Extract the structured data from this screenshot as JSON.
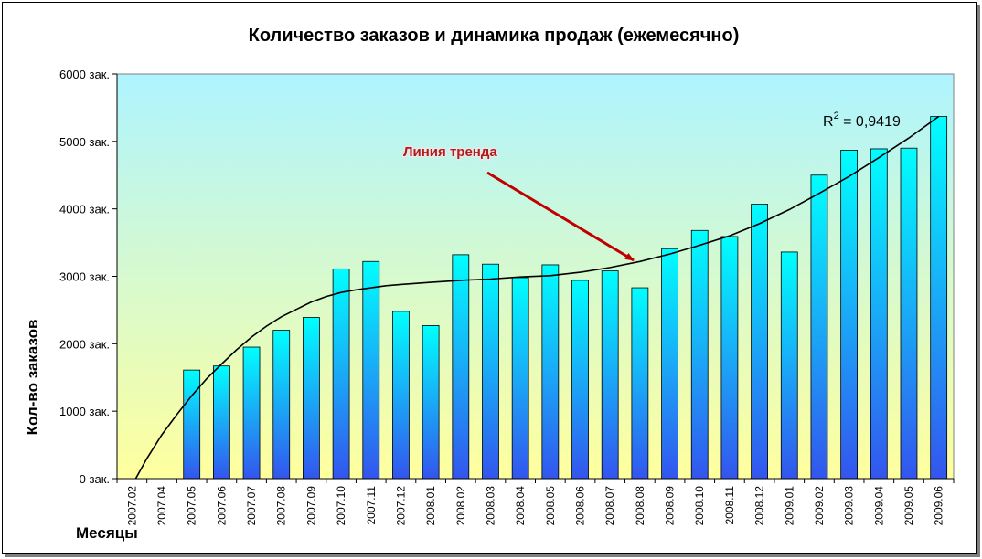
{
  "chart_data": {
    "type": "bar",
    "title": "Количество заказов и динамика продаж (ежемесячно)",
    "xlabel": "Месяцы",
    "ylabel": "Кол-во заказов",
    "ylim": [
      0,
      6000
    ],
    "yticks": [
      {
        "value": 0,
        "label": "0 зак."
      },
      {
        "value": 1000,
        "label": "1000 зак."
      },
      {
        "value": 2000,
        "label": "2000 зак."
      },
      {
        "value": 3000,
        "label": "3000 зак."
      },
      {
        "value": 4000,
        "label": "4000 зак."
      },
      {
        "value": 5000,
        "label": "5000 зак."
      },
      {
        "value": 6000,
        "label": "6000 зак."
      }
    ],
    "categories": [
      "2007.02",
      "2007.04",
      "2007.05",
      "2007.06",
      "2007.07",
      "2007.08",
      "2007.09",
      "2007.10",
      "2007.11",
      "2007.12",
      "2008.01",
      "2008.02",
      "2008.03",
      "2008.04",
      "2008.05",
      "2008.06",
      "2008.07",
      "2008.08",
      "2008.09",
      "2008.10",
      "2008.11",
      "2008.12",
      "2009.01",
      "2009.02",
      "2009.03",
      "2009.04",
      "2009.05",
      "2009.06"
    ],
    "values": [
      0,
      0,
      1610,
      1670,
      1950,
      2200,
      2390,
      3110,
      3220,
      2480,
      2270,
      3320,
      3180,
      2980,
      3170,
      2940,
      3080,
      2830,
      3410,
      3680,
      3590,
      4070,
      3360,
      4500,
      4870,
      4890,
      4900,
      5370
    ],
    "trendline": {
      "type": "polynomial",
      "points": [
        [
          0,
          -100
        ],
        [
          0.5,
          300
        ],
        [
          1,
          650
        ],
        [
          1.5,
          950
        ],
        [
          2,
          1230
        ],
        [
          2.5,
          1480
        ],
        [
          3,
          1700
        ],
        [
          3.5,
          1910
        ],
        [
          4,
          2100
        ],
        [
          4.5,
          2260
        ],
        [
          5,
          2400
        ],
        [
          5.5,
          2510
        ],
        [
          6,
          2620
        ],
        [
          6.5,
          2700
        ],
        [
          7,
          2760
        ],
        [
          7.5,
          2800
        ],
        [
          8,
          2830
        ],
        [
          8.5,
          2860
        ],
        [
          9,
          2880
        ],
        [
          10,
          2910
        ],
        [
          11,
          2940
        ],
        [
          12,
          2960
        ],
        [
          13,
          2990
        ],
        [
          14,
          3010
        ],
        [
          15,
          3060
        ],
        [
          16,
          3130
        ],
        [
          17,
          3220
        ],
        [
          18,
          3330
        ],
        [
          19,
          3460
        ],
        [
          20,
          3600
        ],
        [
          21,
          3780
        ],
        [
          22,
          3990
        ],
        [
          23,
          4230
        ],
        [
          24,
          4480
        ],
        [
          25,
          4760
        ],
        [
          26,
          5050
        ],
        [
          27,
          5370
        ]
      ],
      "r2_label": "R",
      "r2_sup": "2",
      "r2_value": " = 0,9419"
    },
    "annotation": "Линия тренда",
    "colors": {
      "bar_top": "#00ffff",
      "bar_bottom": "#3355ee",
      "bg_top": "#aef4ff",
      "bg_bottom": "#ffff9e",
      "arrow": "#c00000",
      "annotation": "#b31b1b"
    }
  }
}
